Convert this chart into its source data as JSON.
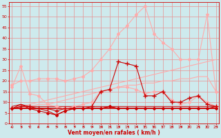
{
  "background_color": "#ceeaed",
  "grid_color": "#e89090",
  "xlabel": "Vent moyen/en rafales ( km/h )",
  "x_ticks": [
    0,
    1,
    2,
    3,
    4,
    5,
    6,
    7,
    8,
    9,
    10,
    11,
    12,
    13,
    14,
    15,
    16,
    17,
    18,
    19,
    20,
    21,
    22,
    23
  ],
  "y_ticks": [
    0,
    5,
    10,
    15,
    20,
    25,
    30,
    35,
    40,
    45,
    50,
    55
  ],
  "ylim": [
    0,
    57
  ],
  "xlim": [
    -0.3,
    23.3
  ],
  "series": [
    {
      "x": [
        0,
        1,
        2,
        3,
        4,
        5,
        6,
        7,
        8,
        9,
        10,
        11,
        12,
        13,
        14,
        15,
        16,
        17,
        18,
        19,
        20,
        21,
        22,
        23
      ],
      "y": [
        7,
        8,
        9,
        10,
        11,
        12,
        13,
        14,
        15,
        16,
        17,
        18,
        19,
        20,
        21,
        22,
        23,
        24,
        25,
        26,
        27,
        28,
        29,
        30
      ],
      "color": "#ffaaaa",
      "linewidth": 0.8,
      "marker": null,
      "markersize": 0
    },
    {
      "x": [
        0,
        1,
        2,
        3,
        4,
        5,
        6,
        7,
        8,
        9,
        10,
        11,
        12,
        13,
        14,
        15,
        16,
        17,
        18,
        19,
        20,
        21,
        22,
        23
      ],
      "y": [
        18,
        20,
        20,
        21,
        21,
        21,
        20,
        21,
        22,
        25,
        30,
        35,
        42,
        46,
        51,
        55,
        42,
        38,
        35,
        30,
        30,
        30,
        51,
        15
      ],
      "color": "#ffaaaa",
      "linewidth": 0.8,
      "marker": "D",
      "markersize": 2
    },
    {
      "x": [
        0,
        1,
        2,
        3,
        4,
        5,
        6,
        7,
        8,
        9,
        10,
        11,
        12,
        13,
        14,
        15,
        16,
        17,
        18,
        19,
        20,
        21,
        22,
        23
      ],
      "y": [
        17,
        27,
        14,
        13,
        9,
        8,
        7,
        8,
        9,
        10,
        15,
        16,
        17,
        17,
        16,
        14,
        15,
        15,
        11,
        9,
        10,
        13,
        10,
        8
      ],
      "color": "#ffaaaa",
      "linewidth": 0.8,
      "marker": "D",
      "markersize": 2
    },
    {
      "x": [
        0,
        1,
        2,
        3,
        4,
        5,
        6,
        7,
        8,
        9,
        10,
        11,
        12,
        13,
        14,
        15,
        16,
        17,
        18,
        19,
        20,
        21,
        22,
        23
      ],
      "y": [
        7,
        7,
        8,
        9,
        9,
        10,
        11,
        12,
        13,
        14,
        15,
        16,
        17,
        18,
        18,
        19,
        19,
        20,
        20,
        21,
        21,
        22,
        22,
        15
      ],
      "color": "#ffaaaa",
      "linewidth": 0.8,
      "marker": null,
      "markersize": 0
    },
    {
      "x": [
        0,
        1,
        2,
        3,
        4,
        5,
        6,
        7,
        8,
        9,
        10,
        11,
        12,
        13,
        14,
        15,
        16,
        17,
        18,
        19,
        20,
        21,
        22,
        23
      ],
      "y": [
        7,
        8,
        8,
        7,
        7,
        6,
        7,
        7,
        7,
        8,
        15,
        16,
        29,
        28,
        27,
        13,
        13,
        15,
        10,
        10,
        12,
        13,
        9,
        8
      ],
      "color": "#cc0000",
      "linewidth": 0.8,
      "marker": "+",
      "markersize": 4
    },
    {
      "x": [
        0,
        1,
        2,
        3,
        4,
        5,
        6,
        7,
        8,
        9,
        10,
        11,
        12,
        13,
        14,
        15,
        16,
        17,
        18,
        19,
        20,
        21,
        22,
        23
      ],
      "y": [
        7,
        7,
        7,
        6,
        5,
        4,
        6,
        7,
        7,
        7,
        7,
        8,
        7,
        7,
        7,
        7,
        7,
        7,
        7,
        7,
        7,
        7,
        7,
        7
      ],
      "color": "#cc0000",
      "linewidth": 0.8,
      "marker": "D",
      "markersize": 2
    },
    {
      "x": [
        0,
        1,
        2,
        3,
        4,
        5,
        6,
        7,
        8,
        9,
        10,
        11,
        12,
        13,
        14,
        15,
        16,
        17,
        18,
        19,
        20,
        21,
        22,
        23
      ],
      "y": [
        7,
        9,
        7,
        7,
        6,
        4,
        6,
        7,
        7,
        7,
        7,
        8,
        7,
        7,
        7,
        7,
        7,
        7,
        7,
        7,
        7,
        7,
        7,
        8
      ],
      "color": "#cc0000",
      "linewidth": 0.8,
      "marker": null,
      "markersize": 0
    },
    {
      "x": [
        0,
        1,
        2,
        3,
        4,
        5,
        6,
        7,
        8,
        9,
        10,
        11,
        12,
        13,
        14,
        15,
        16,
        17,
        18,
        19,
        20,
        21,
        22,
        23
      ],
      "y": [
        7,
        7,
        7,
        7,
        7,
        7,
        7,
        7,
        7,
        7,
        7,
        7,
        7,
        7,
        7,
        7,
        7,
        7,
        7,
        7,
        7,
        7,
        7,
        7
      ],
      "color": "#cc0000",
      "linewidth": 1.2,
      "marker": null,
      "markersize": 0
    },
    {
      "x": [
        0,
        1,
        2,
        3,
        4,
        5,
        6,
        7,
        8,
        9,
        10,
        11,
        12,
        13,
        14,
        15,
        16,
        17,
        18,
        19,
        20,
        21,
        22,
        23
      ],
      "y": [
        8,
        9,
        8,
        8,
        8,
        8,
        8,
        8,
        8,
        8,
        8,
        8,
        8,
        8,
        8,
        8,
        8,
        8,
        8,
        8,
        8,
        8,
        8,
        8
      ],
      "color": "#cc0000",
      "linewidth": 0.7,
      "marker": null,
      "markersize": 0
    }
  ],
  "wind_arrows": {
    "angles_deg": [
      225,
      270,
      315,
      225,
      270,
      270,
      270,
      270,
      270,
      270,
      270,
      270,
      270,
      270,
      270,
      315,
      315,
      315,
      270,
      270,
      315,
      270,
      315,
      270
    ]
  }
}
